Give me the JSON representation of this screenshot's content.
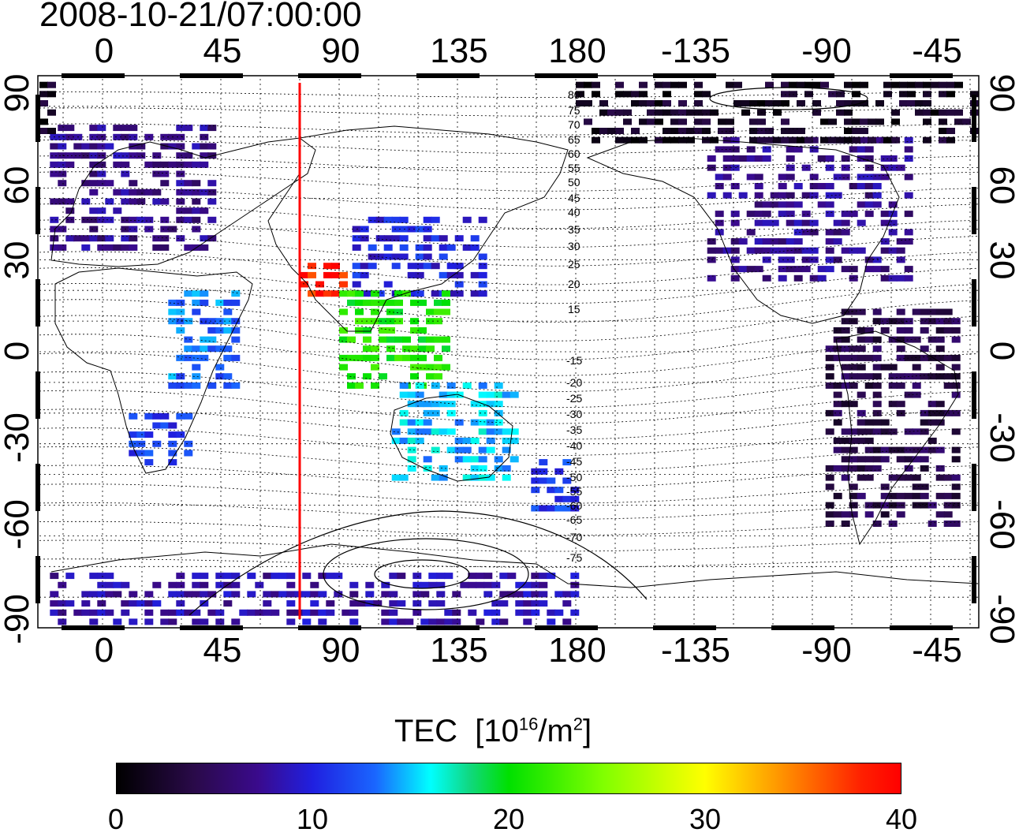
{
  "title": "2008-10-21/07:00:00",
  "lon_labels": [
    "0",
    "45",
    "90",
    "135",
    "180",
    "-135",
    "-90",
    "-45"
  ],
  "lat_labels": [
    "90",
    "60",
    "30",
    "0",
    "-30",
    "-60",
    "-90"
  ],
  "contour_labels_north": [
    "80",
    "75",
    "70",
    "65",
    "60",
    "55",
    "50",
    "45",
    "40",
    "35",
    "30",
    "25",
    "20",
    "15"
  ],
  "contour_labels_south": [
    "-15",
    "-20",
    "-25",
    "-30",
    "-35",
    "-40",
    "-45",
    "-50",
    "-55",
    "-60",
    "-65",
    "-70",
    "-75"
  ],
  "colorbar": {
    "title": "TEC",
    "unit_base": "10",
    "unit_exp": "16",
    "unit_mid": "/m",
    "unit_exp2": "2",
    "ticks": [
      "0",
      "10",
      "20",
      "30",
      "40"
    ],
    "range": [
      0,
      40
    ]
  },
  "meridian_marker_longitude": 75,
  "colors": {
    "marker": "#ff0000",
    "grid": "#000000"
  },
  "tec_regions": [
    {
      "name": "europe",
      "lon": [
        -20,
        40
      ],
      "lat": [
        35,
        75
      ],
      "tec": 7
    },
    {
      "name": "north-america",
      "lon": [
        -130,
        -55
      ],
      "lat": [
        25,
        70
      ],
      "tec": 7
    },
    {
      "name": "south-america",
      "lon": [
        -85,
        -35
      ],
      "lat": [
        -55,
        15
      ],
      "tec": 4
    },
    {
      "name": "east-asia",
      "lon": [
        95,
        145
      ],
      "lat": [
        20,
        45
      ],
      "tec": 10
    },
    {
      "name": "india-hotspot",
      "lon": [
        75,
        90
      ],
      "lat": [
        20,
        30
      ],
      "tec": 38
    },
    {
      "name": "southeast-asia",
      "lon": [
        90,
        130
      ],
      "lat": [
        -10,
        20
      ],
      "tec": 21
    },
    {
      "name": "australia",
      "lon": [
        110,
        155
      ],
      "lat": [
        -40,
        -10
      ],
      "tec": 15
    },
    {
      "name": "southern-africa",
      "lon": [
        10,
        35
      ],
      "lat": [
        -35,
        -20
      ],
      "tec": 11
    },
    {
      "name": "east-africa",
      "lon": [
        25,
        50
      ],
      "lat": [
        -10,
        20
      ],
      "tec": 13
    },
    {
      "name": "new-zealand",
      "lon": [
        160,
        180
      ],
      "lat": [
        -50,
        -35
      ],
      "tec": 11
    },
    {
      "name": "antarctica",
      "lon": [
        -20,
        180
      ],
      "lat": [
        -90,
        -70
      ],
      "tec": 8
    },
    {
      "name": "arctic",
      "lon": [
        -180,
        -20
      ],
      "lat": [
        70,
        90
      ],
      "tec": 2
    }
  ]
}
